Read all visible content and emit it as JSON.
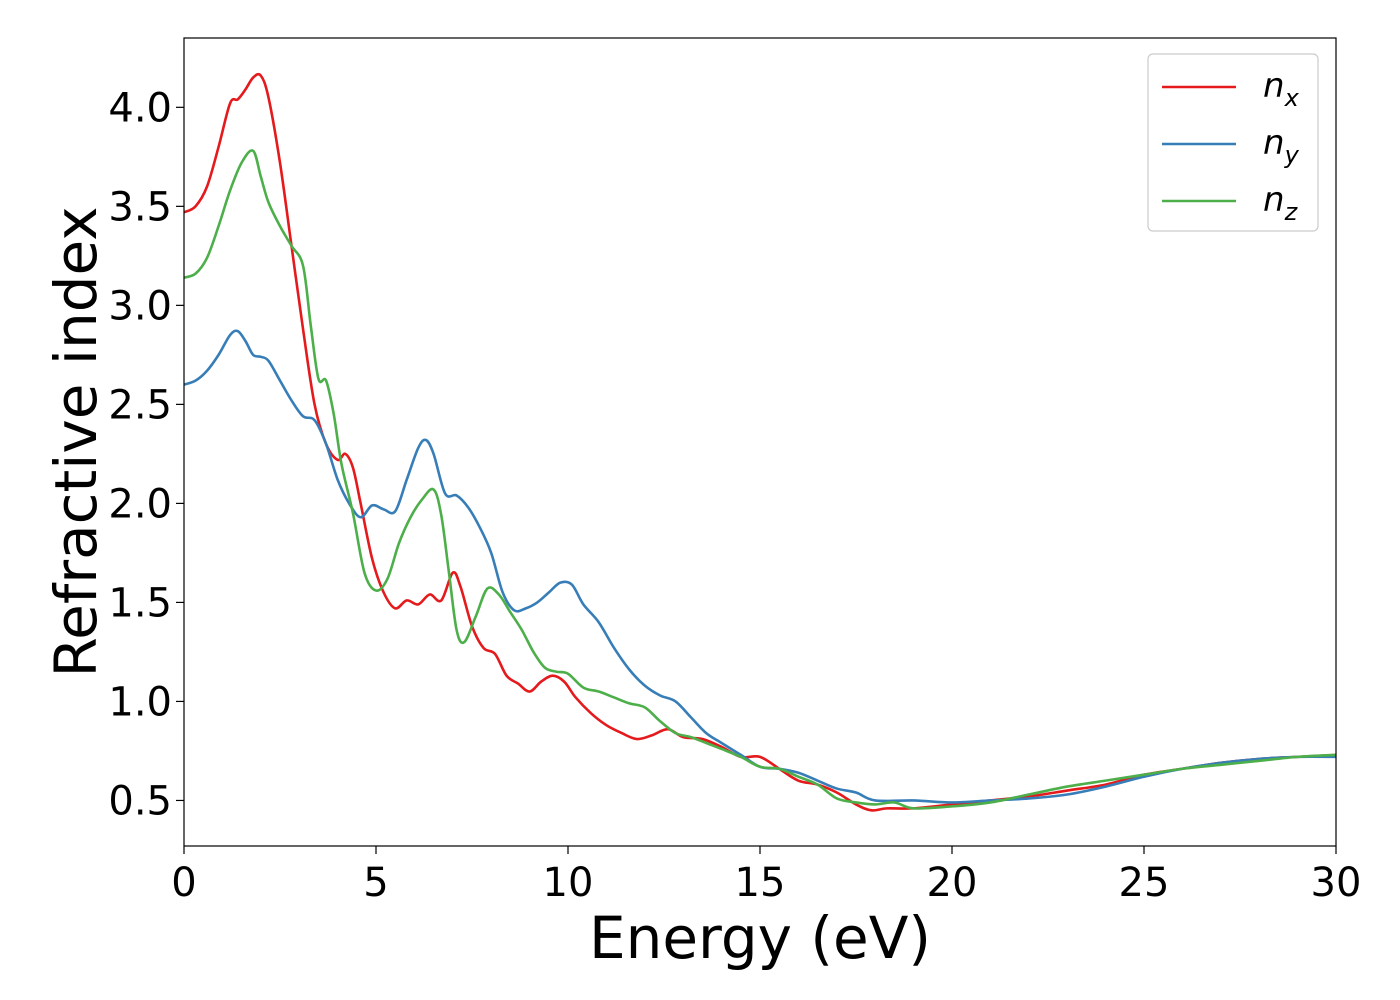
{
  "chart_data": {
    "type": "line",
    "title": "",
    "xlabel": "Energy (eV)",
    "ylabel": "Refractive index",
    "xlim": [
      0,
      30
    ],
    "ylim": [
      0.27,
      4.35
    ],
    "xticks": [
      0,
      5,
      10,
      15,
      20,
      25,
      30
    ],
    "yticks": [
      0.5,
      1.0,
      1.5,
      2.0,
      2.5,
      3.0,
      3.5,
      4.0
    ],
    "grid": false,
    "legend_position": "top-right",
    "series": [
      {
        "name": "n",
        "subscript": "x",
        "color": "#e41a1c",
        "x": [
          0,
          0.3,
          0.6,
          0.9,
          1.2,
          1.4,
          1.6,
          1.8,
          2.0,
          2.2,
          2.5,
          2.8,
          3.1,
          3.4,
          3.7,
          4.0,
          4.2,
          4.4,
          4.6,
          4.9,
          5.2,
          5.5,
          5.8,
          6.1,
          6.4,
          6.7,
          7.0,
          7.2,
          7.5,
          7.8,
          8.1,
          8.4,
          8.7,
          9.0,
          9.3,
          9.6,
          9.9,
          10.2,
          10.6,
          11.0,
          11.4,
          11.8,
          12.2,
          12.6,
          13.0,
          13.5,
          14.0,
          14.5,
          15.0,
          15.5,
          16.0,
          16.5,
          17.0,
          17.5,
          17.9,
          18.3,
          19.0,
          20.0,
          21.0,
          22.0,
          23.0,
          24.0,
          25.0,
          26.0,
          27.0,
          28.0,
          29.0,
          30.0
        ],
        "y": [
          3.47,
          3.5,
          3.6,
          3.8,
          4.02,
          4.04,
          4.09,
          4.15,
          4.16,
          4.05,
          3.72,
          3.3,
          2.88,
          2.5,
          2.3,
          2.22,
          2.25,
          2.18,
          2.0,
          1.72,
          1.55,
          1.47,
          1.51,
          1.49,
          1.54,
          1.51,
          1.65,
          1.58,
          1.38,
          1.27,
          1.24,
          1.13,
          1.09,
          1.05,
          1.1,
          1.13,
          1.1,
          1.02,
          0.94,
          0.88,
          0.84,
          0.81,
          0.83,
          0.86,
          0.82,
          0.81,
          0.77,
          0.72,
          0.72,
          0.66,
          0.6,
          0.58,
          0.54,
          0.48,
          0.45,
          0.46,
          0.46,
          0.48,
          0.5,
          0.52,
          0.55,
          0.58,
          0.63,
          0.66,
          0.69,
          0.71,
          0.72,
          0.73
        ]
      },
      {
        "name": "n",
        "subscript": "y",
        "color": "#377eb8",
        "x": [
          0,
          0.3,
          0.6,
          0.9,
          1.2,
          1.4,
          1.6,
          1.8,
          2.0,
          2.2,
          2.5,
          2.8,
          3.1,
          3.4,
          3.7,
          4.0,
          4.3,
          4.6,
          4.9,
          5.2,
          5.5,
          5.8,
          6.1,
          6.3,
          6.5,
          6.8,
          7.1,
          7.4,
          7.7,
          8.0,
          8.3,
          8.6,
          8.9,
          9.2,
          9.5,
          9.8,
          10.1,
          10.4,
          10.8,
          11.2,
          11.6,
          12.0,
          12.4,
          12.8,
          13.2,
          13.6,
          14.0,
          14.5,
          15.0,
          15.5,
          16.0,
          16.5,
          17.0,
          17.5,
          18.0,
          19.0,
          20.0,
          21.0,
          22.0,
          23.0,
          24.0,
          25.0,
          26.0,
          27.0,
          28.0,
          29.0,
          30.0
        ],
        "y": [
          2.6,
          2.62,
          2.67,
          2.75,
          2.85,
          2.87,
          2.82,
          2.75,
          2.74,
          2.72,
          2.62,
          2.52,
          2.44,
          2.42,
          2.3,
          2.12,
          2.0,
          1.93,
          1.99,
          1.97,
          1.96,
          2.12,
          2.28,
          2.32,
          2.25,
          2.05,
          2.04,
          1.98,
          1.88,
          1.75,
          1.55,
          1.46,
          1.47,
          1.5,
          1.55,
          1.6,
          1.59,
          1.49,
          1.4,
          1.27,
          1.16,
          1.08,
          1.03,
          1.0,
          0.92,
          0.84,
          0.79,
          0.73,
          0.67,
          0.66,
          0.64,
          0.6,
          0.56,
          0.54,
          0.5,
          0.5,
          0.49,
          0.5,
          0.51,
          0.53,
          0.57,
          0.62,
          0.66,
          0.69,
          0.71,
          0.72,
          0.72
        ]
      },
      {
        "name": "n",
        "subscript": "z",
        "color": "#4daf4a",
        "x": [
          0,
          0.3,
          0.6,
          0.9,
          1.2,
          1.5,
          1.8,
          2.0,
          2.2,
          2.5,
          2.8,
          3.1,
          3.3,
          3.5,
          3.7,
          3.9,
          4.1,
          4.4,
          4.7,
          5.0,
          5.3,
          5.6,
          5.9,
          6.2,
          6.5,
          6.7,
          6.9,
          7.1,
          7.3,
          7.6,
          7.9,
          8.2,
          8.5,
          8.8,
          9.1,
          9.4,
          9.7,
          10.0,
          10.4,
          10.8,
          11.2,
          11.6,
          12.0,
          12.4,
          12.8,
          13.2,
          13.6,
          14.0,
          14.5,
          15.0,
          15.5,
          16.0,
          16.5,
          17.0,
          17.5,
          18.0,
          18.5,
          19.0,
          20.0,
          21.0,
          22.0,
          23.0,
          24.0,
          25.0,
          26.0,
          27.0,
          28.0,
          29.0,
          30.0
        ],
        "y": [
          3.14,
          3.16,
          3.24,
          3.4,
          3.58,
          3.72,
          3.78,
          3.65,
          3.52,
          3.4,
          3.3,
          3.2,
          2.9,
          2.63,
          2.62,
          2.45,
          2.2,
          1.95,
          1.65,
          1.56,
          1.62,
          1.8,
          1.93,
          2.02,
          2.07,
          1.94,
          1.65,
          1.36,
          1.3,
          1.43,
          1.57,
          1.54,
          1.45,
          1.36,
          1.25,
          1.17,
          1.15,
          1.14,
          1.07,
          1.05,
          1.02,
          0.99,
          0.97,
          0.9,
          0.84,
          0.82,
          0.79,
          0.76,
          0.72,
          0.67,
          0.66,
          0.62,
          0.58,
          0.51,
          0.49,
          0.48,
          0.49,
          0.46,
          0.47,
          0.49,
          0.53,
          0.57,
          0.6,
          0.63,
          0.66,
          0.68,
          0.7,
          0.72,
          0.73
        ]
      }
    ]
  }
}
